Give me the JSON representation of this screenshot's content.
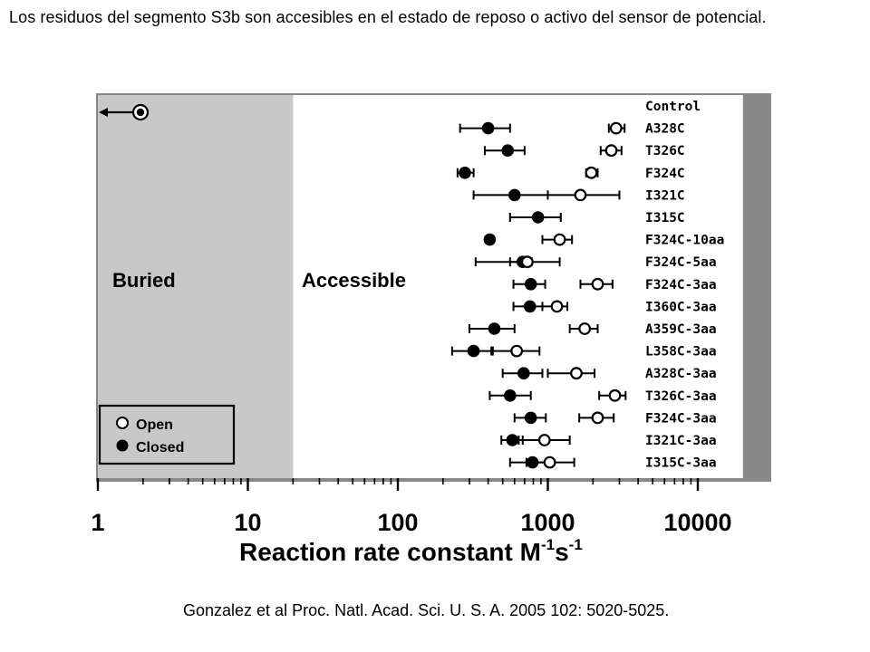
{
  "slide": {
    "title": "Los residuos del segmento S3b son accesibles en el estado de reposo o activo del sensor de potencial.",
    "citation": "Gonzalez et al Proc. Natl. Acad. Sci. U. S. A. 2005 102: 5020-5025."
  },
  "chart_data": {
    "type": "scatter",
    "x_scale": "log",
    "xlim": [
      1,
      20000
    ],
    "x_ticks": [
      1,
      10,
      100,
      1000,
      10000
    ],
    "x_tick_labels": [
      "1",
      "10",
      "100",
      "1000",
      "10000"
    ],
    "xlabel_main": "Reaction rate constant M",
    "xlabel_sup1": "-1",
    "xlabel_mid": "s",
    "xlabel_sup2": "-1",
    "regions": [
      {
        "label": "Buried",
        "x_range": [
          1,
          20
        ],
        "fill": "#c8c8c8"
      },
      {
        "label": "Accessible",
        "x_range": [
          20,
          20000
        ],
        "fill": "#ffffff"
      }
    ],
    "legend": {
      "placement": "bottom-left",
      "entries": [
        {
          "label": "Open",
          "marker": "open"
        },
        {
          "label": "Closed",
          "marker": "closed"
        }
      ]
    },
    "samples": [
      {
        "label": "Control",
        "open": null,
        "closed": null,
        "control_offscale_left": true
      },
      {
        "label": "A328C",
        "open": [
          2850,
          2550,
          3250
        ],
        "closed": [
          400,
          260,
          560
        ]
      },
      {
        "label": "T326C",
        "open": [
          2650,
          2250,
          3100
        ],
        "closed": [
          540,
          380,
          700
        ]
      },
      {
        "label": "F324C",
        "open": [
          1950,
          1800,
          2150
        ],
        "closed": [
          280,
          250,
          320
        ]
      },
      {
        "label": "I321C",
        "open": [
          1650,
          1000,
          3000
        ],
        "closed": [
          600,
          320,
          1000
        ]
      },
      {
        "label": "I315C",
        "open": null,
        "closed": [
          860,
          560,
          1220
        ]
      },
      {
        "label": "F324C-10aa",
        "open": [
          1200,
          920,
          1450
        ],
        "closed": [
          410,
          410,
          410
        ]
      },
      {
        "label": "F324C-5aa",
        "open": [
          730,
          560,
          1200
        ],
        "closed": [
          680,
          330,
          780
        ]
      },
      {
        "label": "F324C-3aa",
        "open": [
          2150,
          1650,
          2700
        ],
        "closed": [
          770,
          590,
          960
        ]
      },
      {
        "label": "I360C-3aa",
        "open": [
          1150,
          920,
          1350
        ],
        "closed": [
          760,
          590,
          920
        ]
      },
      {
        "label": "A359C-3aa",
        "open": [
          1760,
          1400,
          2150
        ],
        "closed": [
          440,
          300,
          600
        ]
      },
      {
        "label": "L358C-3aa",
        "open": [
          620,
          420,
          880
        ],
        "closed": [
          320,
          230,
          430
        ]
      },
      {
        "label": "A328C-3aa",
        "open": [
          1550,
          1000,
          2050
        ],
        "closed": [
          690,
          500,
          920
        ]
      },
      {
        "label": "T326C-3aa",
        "open": [
          2800,
          2200,
          3300
        ],
        "closed": [
          560,
          410,
          770
        ]
      },
      {
        "label": "F324C-3aa",
        "open": [
          2150,
          1620,
          2750
        ],
        "closed": [
          770,
          600,
          970
        ]
      },
      {
        "label": "I321C-3aa",
        "open": [
          950,
          640,
          1400
        ],
        "closed": [
          580,
          490,
          680
        ]
      },
      {
        "label": "I315C-3aa",
        "open": [
          1030,
          720,
          1500
        ],
        "closed": [
          790,
          560,
          980
        ]
      }
    ]
  }
}
